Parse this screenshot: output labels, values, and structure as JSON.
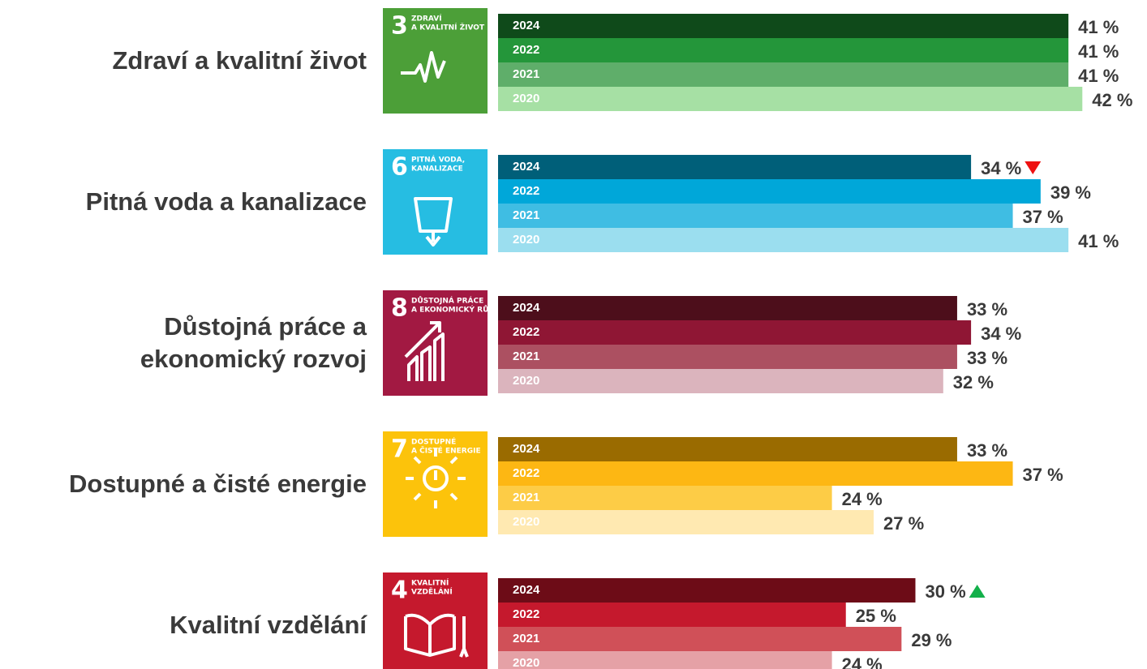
{
  "chart_data": {
    "type": "grouped-bar",
    "years": [
      "2024",
      "2022",
      "2021",
      "2020"
    ],
    "groups": [
      {
        "label": [
          "Zdraví a kvalitní život"
        ],
        "icon_number": "3",
        "icon_text": [
          "ZDRAVÍ",
          "A KVALITNÍ ŽIVOT"
        ],
        "icon_color": "#4c9f38",
        "colors": [
          "#0f4a1a",
          "#24963a",
          "#5fae6a",
          "#a6e0a4"
        ],
        "values": [
          41,
          41,
          41,
          42
        ],
        "value_labels": [
          "41 %",
          "41 %",
          "41 %",
          "42 %"
        ],
        "trend": null
      },
      {
        "label": [
          "Pitná voda a kanalizace"
        ],
        "icon_number": "6",
        "icon_text": [
          "PITNÁ VODA,",
          "KANALIZACE"
        ],
        "icon_color": "#26bde2",
        "colors": [
          "#005f79",
          "#00a7d9",
          "#3fbde3",
          "#9bdeef"
        ],
        "values": [
          34,
          39,
          37,
          41
        ],
        "value_labels": [
          "34 %",
          "39 %",
          "37 %",
          "41 %"
        ],
        "trend": "down"
      },
      {
        "label": [
          "Důstojná práce a",
          "ekonomický rozvoj"
        ],
        "icon_number": "8",
        "icon_text": [
          "DŮSTOJNÁ PRÁCE",
          "A EKONOMICKÝ RŮST"
        ],
        "icon_color": "#a21942",
        "colors": [
          "#4d0e1b",
          "#8f1634",
          "#ac5061",
          "#dbb4bd"
        ],
        "values": [
          33,
          34,
          33,
          32
        ],
        "value_labels": [
          "33 %",
          "34 %",
          "33 %",
          "32 %"
        ],
        "trend": null
      },
      {
        "label": [
          "Dostupné a čisté energie"
        ],
        "icon_number": "7",
        "icon_text": [
          "DOSTUPNÉ",
          "A ČISTÉ ENERGIE"
        ],
        "icon_color": "#fcc30b",
        "colors": [
          "#9a6b00",
          "#fdb713",
          "#fdcc46",
          "#ffe9b1"
        ],
        "values": [
          33,
          37,
          24,
          27
        ],
        "value_labels": [
          "33 %",
          "37 %",
          "24 %",
          "27 %"
        ],
        "trend": null
      },
      {
        "label": [
          "Kvalitní vzdělání"
        ],
        "icon_number": "4",
        "icon_text": [
          "KVALITNÍ",
          "VZDĚLÁNÍ"
        ],
        "icon_color": "#c5192d",
        "colors": [
          "#6d0c17",
          "#c5192d",
          "#d05058",
          "#e5a1a6"
        ],
        "values": [
          30,
          25,
          29,
          24
        ],
        "value_labels": [
          "30 %",
          "25 %",
          "29 %",
          "24 %"
        ],
        "trend": "up"
      }
    ]
  }
}
